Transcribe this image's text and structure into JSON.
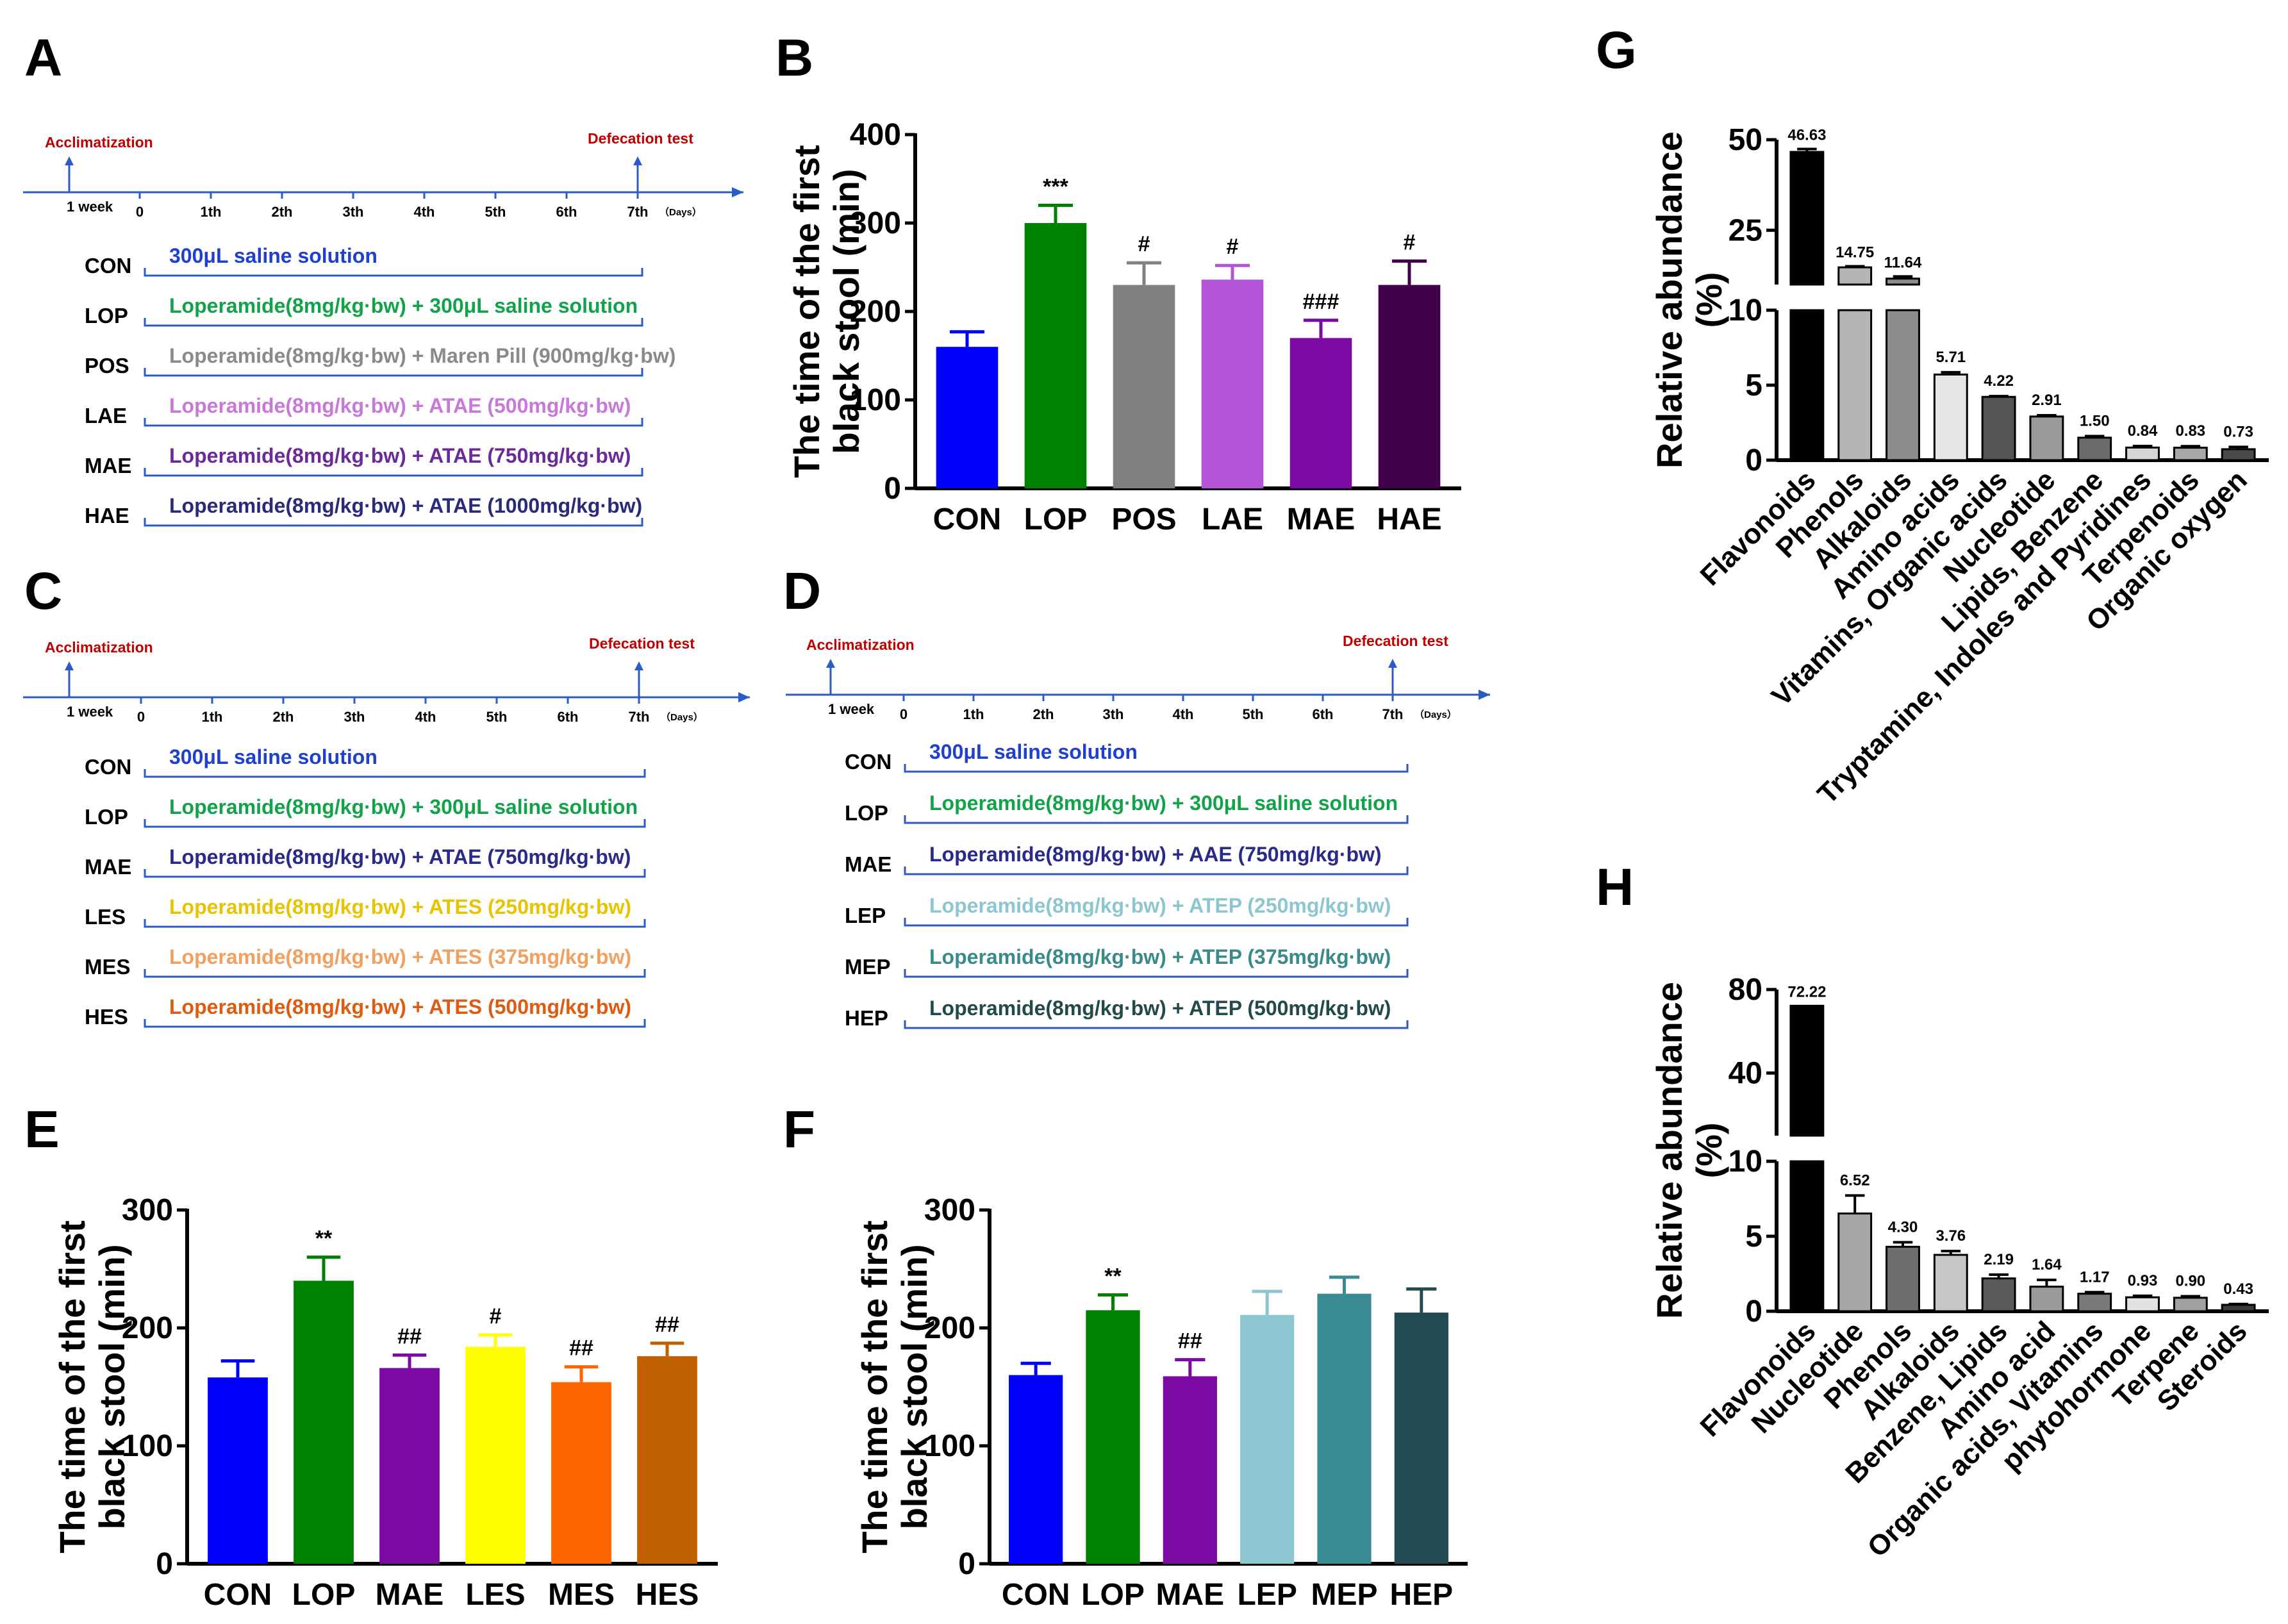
{
  "panels": {
    "A": "A",
    "B": "B",
    "C": "C",
    "D": "D",
    "E": "E",
    "F": "F",
    "G": "G",
    "H": "H"
  },
  "timeline": {
    "acclimatization": "Acclimatization",
    "defecation": "Defecation test",
    "week": "1 week",
    "days": [
      "0",
      "1th",
      "2th",
      "3th",
      "4th",
      "5th",
      "6th",
      "7th"
    ],
    "days_unit": "（Days）"
  },
  "schemes": {
    "A": [
      {
        "group": "CON",
        "text": "300μL  saline solution",
        "color": "#1f3fd0"
      },
      {
        "group": "LOP",
        "text": "Loperamide(8mg/kg·bw) + 300μL  saline solution",
        "color": "#12a34a"
      },
      {
        "group": "POS",
        "text": "Loperamide(8mg/kg·bw) + Maren Pill (900mg/kg·bw)",
        "color": "#8a8a8a"
      },
      {
        "group": "LAE",
        "text": "Loperamide(8mg/kg·bw) + ATAE (500mg/kg·bw)",
        "color": "#c878d8"
      },
      {
        "group": "MAE",
        "text": "Loperamide(8mg/kg·bw) + ATAE (750mg/kg·bw)",
        "color": "#6a2a9a"
      },
      {
        "group": "HAE",
        "text": "Loperamide(8mg/kg·bw) + ATAE (1000mg/kg·bw)",
        "color": "#2a2a7a"
      }
    ],
    "C": [
      {
        "group": "CON",
        "text": "300μL  saline solution",
        "color": "#1f3fd0"
      },
      {
        "group": "LOP",
        "text": "Loperamide(8mg/kg·bw) + 300μL  saline solution",
        "color": "#12a34a"
      },
      {
        "group": "MAE",
        "text": "Loperamide(8mg/kg·bw) + ATAE (750mg/kg·bw)",
        "color": "#2a2a8a"
      },
      {
        "group": "LES",
        "text": "Loperamide(8mg/kg·bw) + ATES (250mg/kg·bw)",
        "color": "#e8c400"
      },
      {
        "group": "MES",
        "text": "Loperamide(8mg/kg·bw) + ATES (375mg/kg·bw)",
        "color": "#f0a060"
      },
      {
        "group": "HES",
        "text": "Loperamide(8mg/kg·bw) + ATES (500mg/kg·bw)",
        "color": "#e05a10"
      }
    ],
    "D": [
      {
        "group": "CON",
        "text": "300μL  saline solution",
        "color": "#1f3fd0"
      },
      {
        "group": "LOP",
        "text": "Loperamide(8mg/kg·bw) + 300μL  saline solution",
        "color": "#12a34a"
      },
      {
        "group": "MAE",
        "text": "Loperamide(8mg/kg·bw) + AAE (750mg/kg·bw)",
        "color": "#2a2a8a"
      },
      {
        "group": "LEP",
        "text": "Loperamide(8mg/kg·bw) + ATEP (250mg/kg·bw)",
        "color": "#8cc6d0"
      },
      {
        "group": "MEP",
        "text": "Loperamide(8mg/kg·bw) + ATEP (375mg/kg·bw)",
        "color": "#3a8a8a"
      },
      {
        "group": "HEP",
        "text": "Loperamide(8mg/kg·bw) + ATEP (500mg/kg·bw)",
        "color": "#224a4a"
      }
    ]
  },
  "chart_data": [
    {
      "id": "B",
      "type": "bar",
      "ylabel": [
        "The time of the first",
        "black stool (min)"
      ],
      "ylim": [
        0,
        400
      ],
      "yticks": [
        "0",
        "100",
        "200",
        "300",
        "400"
      ],
      "categories": [
        "CON",
        "LOP",
        "POS",
        "LAE",
        "MAE",
        "HAE"
      ],
      "values": [
        160,
        300,
        230,
        236,
        170,
        230
      ],
      "errors": [
        17,
        20,
        25,
        16,
        20,
        27
      ],
      "annotations": [
        "",
        "***",
        "#",
        "#",
        "###",
        "#"
      ],
      "colors": [
        "#0000ff",
        "#008000",
        "#808080",
        "#b455d8",
        "#7a0aa2",
        "#42004a"
      ]
    },
    {
      "id": "E",
      "type": "bar",
      "ylabel": [
        "The time of the first",
        "black stool (min)"
      ],
      "ylim": [
        0,
        300
      ],
      "yticks": [
        "0",
        "100",
        "200",
        "300"
      ],
      "categories": [
        "CON",
        "LOP",
        "MAE",
        "LES",
        "MES",
        "HES"
      ],
      "values": [
        158,
        240,
        166,
        184,
        154,
        176
      ],
      "errors": [
        14,
        20,
        11,
        10,
        13,
        11
      ],
      "annotations": [
        "",
        "**",
        "##",
        "#",
        "##",
        "##"
      ],
      "colors": [
        "#0000ff",
        "#008000",
        "#7a0aa2",
        "#ffff00",
        "#ff6600",
        "#c06000"
      ]
    },
    {
      "id": "F",
      "type": "bar",
      "ylabel": [
        "The time of the first",
        "black stool (min)"
      ],
      "ylim": [
        0,
        300
      ],
      "yticks": [
        "0",
        "100",
        "200",
        "300"
      ],
      "categories": [
        "CON",
        "LOP",
        "MAE",
        "LEP",
        "MEP",
        "HEP"
      ],
      "values": [
        160,
        215,
        159,
        211,
        229,
        213
      ],
      "errors": [
        10,
        13,
        14,
        20,
        14,
        20
      ],
      "annotations": [
        "",
        "**",
        "##",
        "",
        "",
        ""
      ],
      "colors": [
        "#0000ff",
        "#008000",
        "#7a0aa2",
        "#8cc6d0",
        "#3a8a94",
        "#224a50"
      ]
    },
    {
      "id": "G",
      "type": "bar",
      "ylabel": [
        "Relative abundance",
        "(%)"
      ],
      "axis_break": true,
      "lower_ylim": [
        0,
        10
      ],
      "upper_ylim": [
        10,
        50
      ],
      "yticks_lower": [
        "0",
        "5",
        "10"
      ],
      "yticks_upper": [
        "25",
        "50"
      ],
      "categories": [
        "Flavonoids",
        "Phenols",
        "Alkaloids",
        "Amino acids",
        "Vitamins, Organic acids",
        "Nucleotide",
        "Lipids, Benzene",
        "Tryptamine, Indoles and Pyridines",
        "Terpenoids",
        "Organic oxygen"
      ],
      "values": [
        46.63,
        14.75,
        11.64,
        5.71,
        4.22,
        2.91,
        1.5,
        0.84,
        0.83,
        0.73
      ],
      "value_labels": [
        "46.63",
        "14.75",
        "11.64",
        "5.71",
        "4.22",
        "2.91",
        "1.50",
        "0.84",
        "0.83",
        "0.73"
      ],
      "errors": [
        0.8,
        0.3,
        0.6,
        0.15,
        0.05,
        0.08,
        0.1,
        0.1,
        0.1,
        0.15
      ],
      "colors": [
        "#000000",
        "#b5b5b5",
        "#8c8c8c",
        "#e6e6e6",
        "#555555",
        "#9a9a9a",
        "#6a6a6a",
        "#d6d6d6",
        "#a8a8a8",
        "#4a4a4a"
      ]
    },
    {
      "id": "H",
      "type": "bar",
      "ylabel": [
        "Relative abundance",
        "(%)"
      ],
      "axis_break": true,
      "lower_ylim": [
        0,
        10
      ],
      "upper_ylim": [
        10,
        80
      ],
      "yticks_lower": [
        "0",
        "5",
        "10"
      ],
      "yticks_upper": [
        "40",
        "80"
      ],
      "categories": [
        "Flavonoids",
        "Nucleotide",
        "Phenols",
        "Alkaloids",
        "Benzene, Lipids",
        "Amino acid",
        "Organic acids, Vitamins",
        "phytohormone",
        "Terpene",
        "Steroids"
      ],
      "values": [
        72.22,
        6.52,
        4.3,
        3.76,
        2.19,
        1.64,
        1.17,
        0.93,
        0.9,
        0.43
      ],
      "value_labels": [
        "72.22",
        "6.52",
        "4.30",
        "3.76",
        "2.19",
        "1.64",
        "1.17",
        "0.93",
        "0.90",
        "0.43"
      ],
      "errors": [
        0,
        1.2,
        0.3,
        0.25,
        0.25,
        0.45,
        0.1,
        0.1,
        0.1,
        0.05
      ],
      "colors": [
        "#000000",
        "#a6a6a6",
        "#6e6e6e",
        "#c8c8c8",
        "#5a5a5a",
        "#9a9a9a",
        "#7a7a7a",
        "#e2e2e2",
        "#a0a0a0",
        "#3c3c3c"
      ]
    }
  ]
}
